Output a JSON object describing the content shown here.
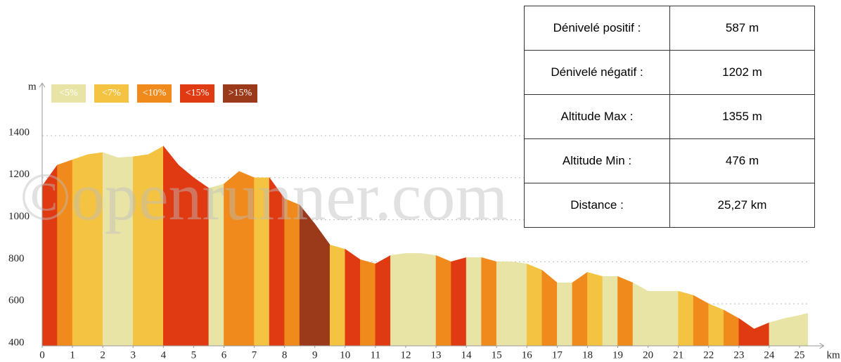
{
  "chart_data": {
    "type": "area",
    "y_label": "m",
    "x_label": "km",
    "watermark": "©openrunner.com",
    "legend": [
      {
        "name": "<5%",
        "color": "#e8e4a6"
      },
      {
        "name": "<7%",
        "color": "#f5c342"
      },
      {
        "name": "<10%",
        "color": "#f08a1c"
      },
      {
        "name": "<15%",
        "color": "#e03a12"
      },
      {
        "name": ">15%",
        "color": "#9b3a1a"
      }
    ],
    "x": [
      0,
      0.5,
      1,
      1.5,
      2,
      2.5,
      3,
      3.5,
      4,
      4.5,
      5,
      5.5,
      6,
      6.5,
      7,
      7.5,
      8,
      8.5,
      9,
      9.5,
      10,
      10.5,
      11,
      11.5,
      12,
      12.5,
      13,
      13.5,
      14,
      14.5,
      15,
      15.5,
      16,
      16.5,
      17,
      17.5,
      18,
      18.5,
      19,
      19.5,
      20,
      20.5,
      21,
      21.5,
      22,
      22.5,
      23,
      23.5,
      24,
      24.5,
      25,
      25.27
    ],
    "values": [
      1160,
      1260,
      1285,
      1310,
      1320,
      1295,
      1300,
      1310,
      1350,
      1260,
      1200,
      1150,
      1170,
      1230,
      1200,
      1200,
      1100,
      1070,
      980,
      880,
      860,
      810,
      790,
      830,
      840,
      840,
      830,
      800,
      820,
      820,
      800,
      800,
      790,
      760,
      700,
      700,
      750,
      730,
      730,
      700,
      660,
      660,
      660,
      640,
      600,
      570,
      530,
      480,
      510,
      530,
      545,
      555
    ],
    "segment_class": [
      3,
      2,
      1,
      1,
      0,
      0,
      1,
      1,
      3,
      3,
      3,
      0,
      2,
      2,
      1,
      3,
      2,
      4,
      4,
      1,
      3,
      2,
      3,
      0,
      0,
      0,
      2,
      3,
      0,
      2,
      0,
      0,
      1,
      2,
      0,
      2,
      1,
      0,
      2,
      0,
      0,
      0,
      1,
      2,
      1,
      2,
      3,
      3,
      0,
      0,
      0
    ],
    "xlim": [
      0,
      25.8
    ],
    "ylim": [
      400,
      1650
    ],
    "xticks": [
      0,
      1,
      2,
      3,
      4,
      5,
      6,
      7,
      8,
      9,
      10,
      11,
      12,
      13,
      14,
      15,
      16,
      17,
      18,
      19,
      20,
      21,
      22,
      23,
      24,
      25
    ],
    "yticks": [
      400,
      600,
      800,
      1000,
      1200,
      1400
    ],
    "grid": true
  },
  "table": {
    "rows": [
      [
        "Dénivelé positif :",
        "587 m"
      ],
      [
        "Dénivelé négatif :",
        "1202 m"
      ],
      [
        "Altitude Max :",
        "1355 m"
      ],
      [
        "Altitude Min :",
        "476 m"
      ],
      [
        "Distance :",
        "25,27 km"
      ]
    ]
  }
}
